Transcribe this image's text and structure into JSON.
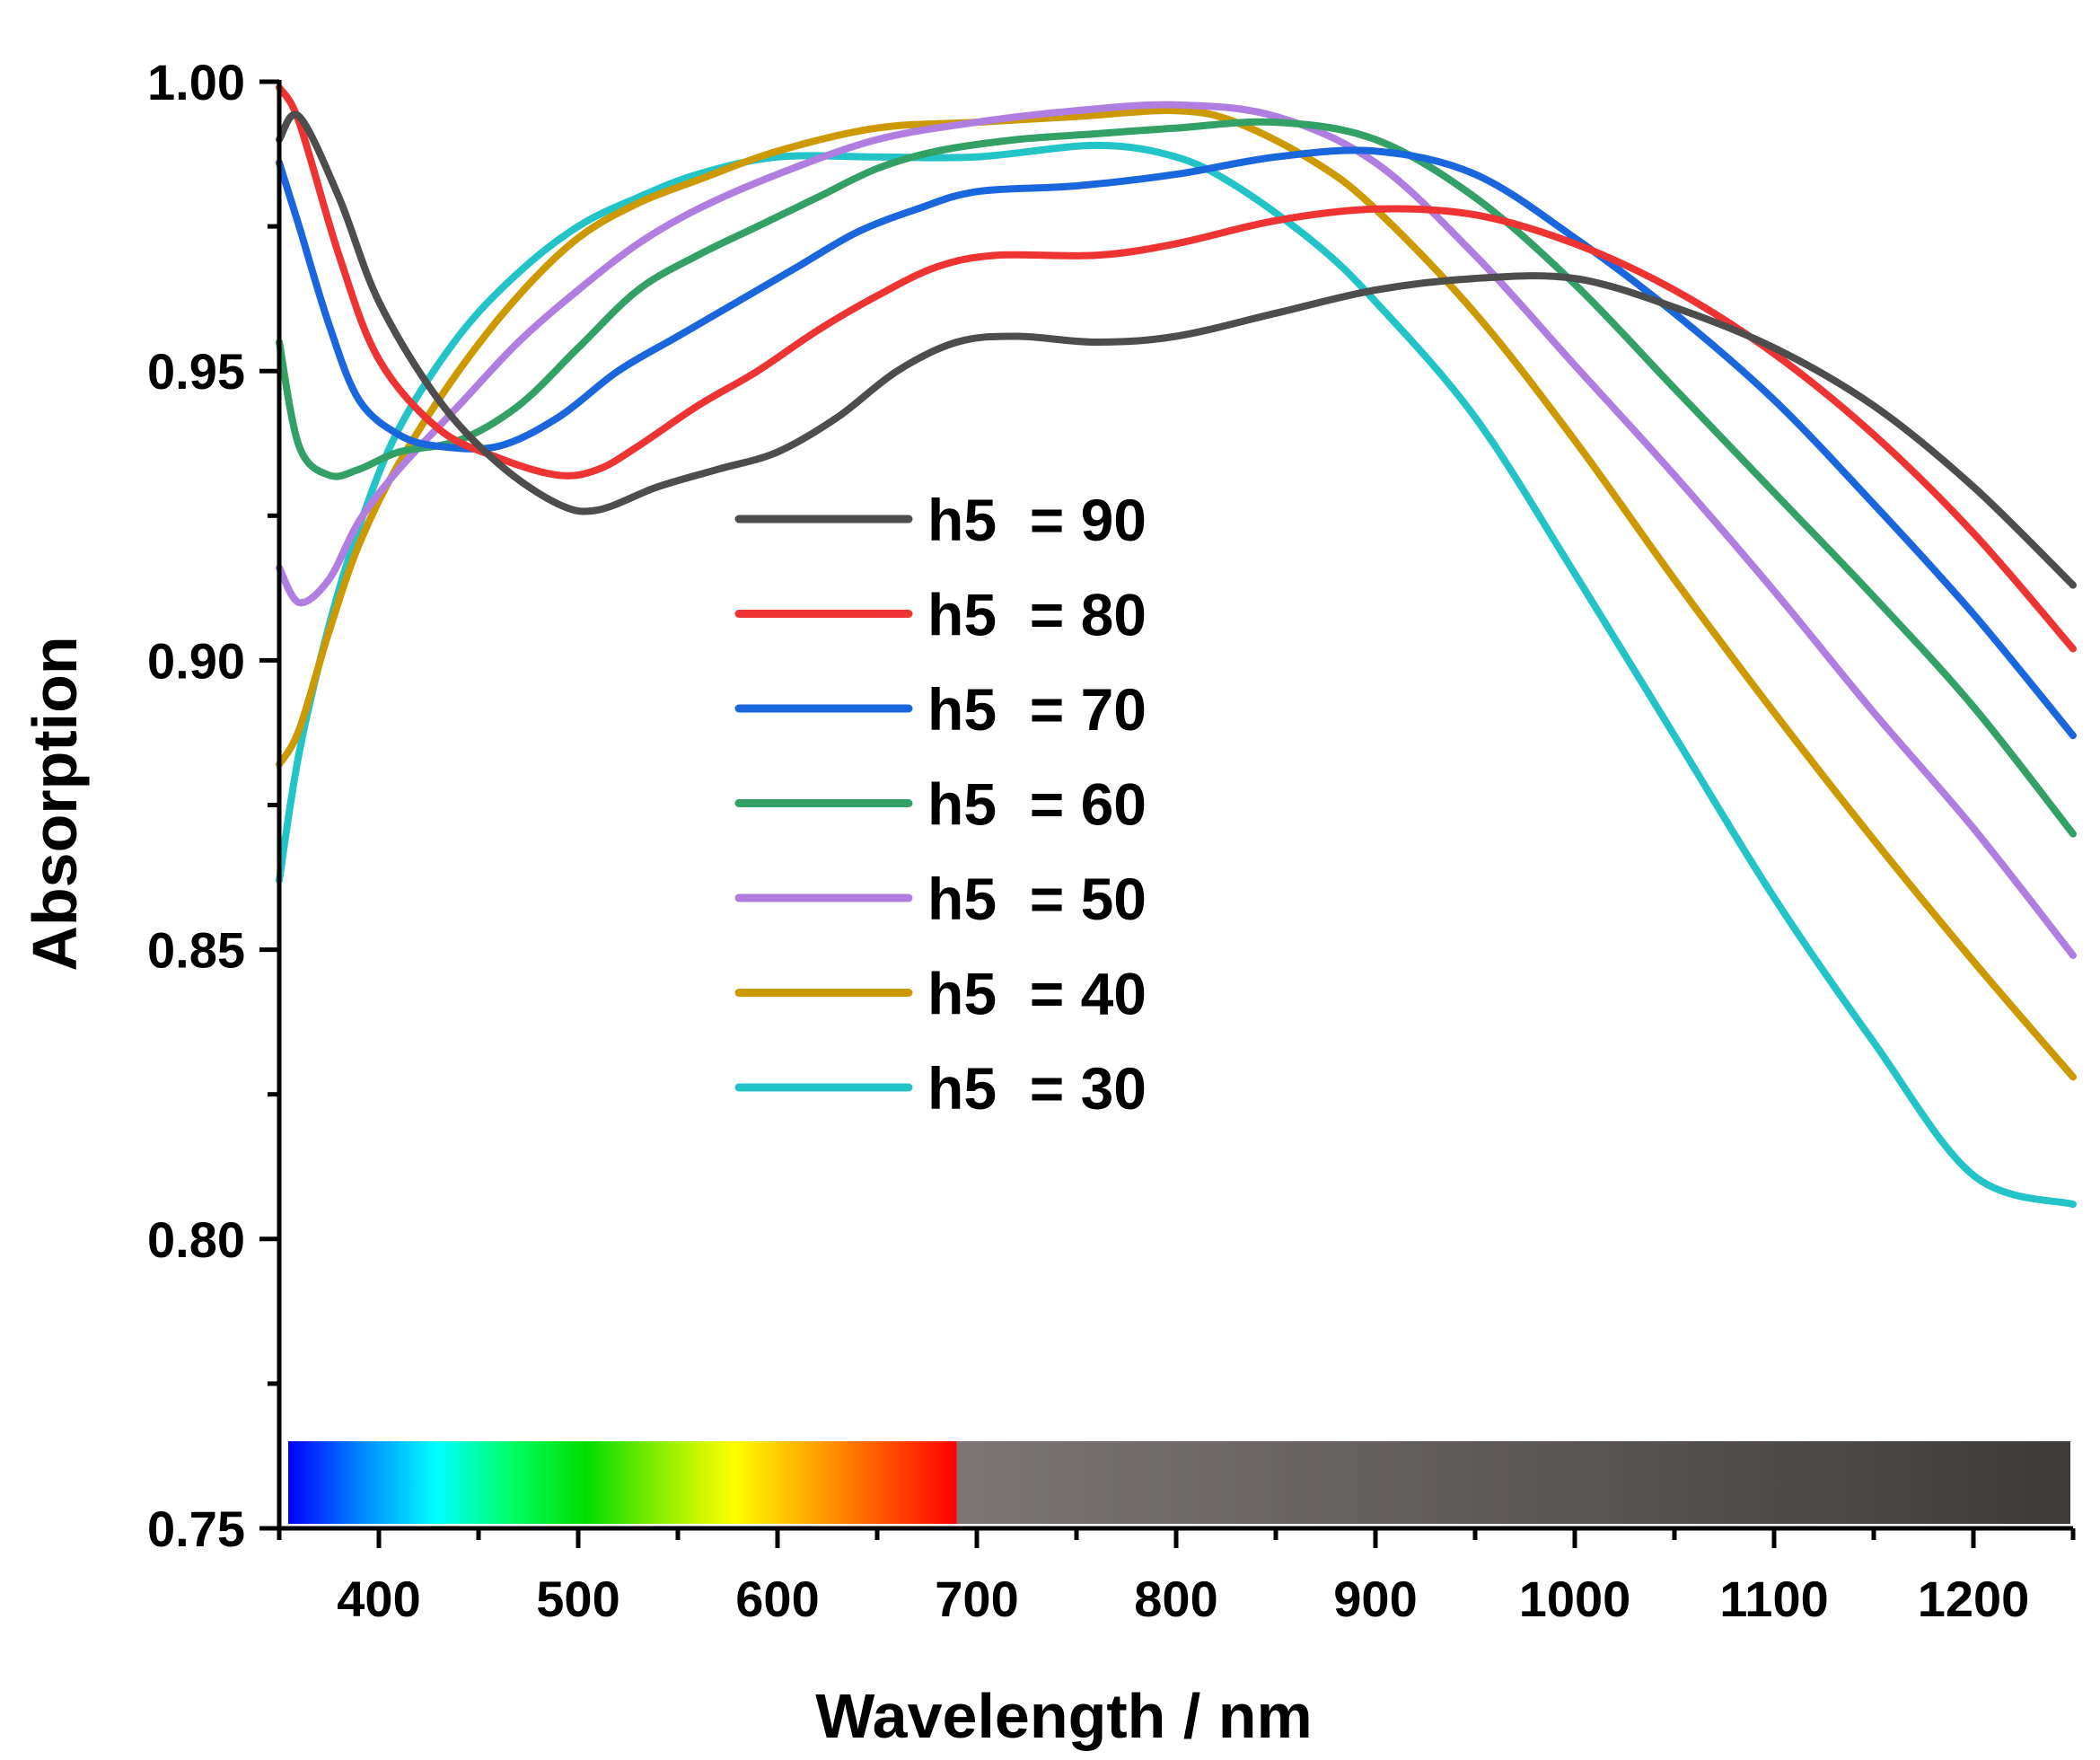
{
  "chart_data": {
    "type": "line",
    "xlabel": "Wavelength / nm",
    "ylabel": "Absorption",
    "xlim": [
      350,
      1250
    ],
    "ylim": [
      0.75,
      1.0
    ],
    "x_ticks": [
      400,
      500,
      600,
      700,
      800,
      900,
      1000,
      1100,
      1200
    ],
    "y_ticks": [
      0.75,
      0.8,
      0.85,
      0.9,
      0.95,
      1.0
    ],
    "y_tick_labels": [
      "0.75",
      "0.80",
      "0.85",
      "0.90",
      "0.95",
      "1.00"
    ],
    "grid": false,
    "legend_position": "center",
    "spectrum_bar": {
      "visible_range_nm": [
        350,
        690
      ],
      "infrared_range_nm": [
        690,
        1250
      ],
      "colors": [
        "#0000ff",
        "#0088ff",
        "#00ffff",
        "#00ff66",
        "#00dd00",
        "#88ee00",
        "#ffff00",
        "#ffaa00",
        "#ff5500",
        "#ff0000"
      ],
      "ir_colors": [
        "#7b7675",
        "#3f3b3a"
      ]
    },
    "series": [
      {
        "name": "h5  = 90",
        "color": "#4d4d4d",
        "x": [
          350,
          360,
          380,
          400,
          430,
          460,
          490,
          510,
          540,
          570,
          600,
          630,
          660,
          690,
          720,
          760,
          800,
          850,
          900,
          950,
          1000,
          1050,
          1100,
          1150,
          1200,
          1250
        ],
        "y": [
          0.99,
          0.994,
          0.98,
          0.962,
          0.945,
          0.934,
          0.927,
          0.926,
          0.93,
          0.933,
          0.936,
          0.942,
          0.95,
          0.955,
          0.956,
          0.955,
          0.956,
          0.96,
          0.964,
          0.966,
          0.966,
          0.961,
          0.954,
          0.944,
          0.93,
          0.913
        ]
      },
      {
        "name": "h5  = 80",
        "color": "#ee3333",
        "x": [
          350,
          360,
          380,
          400,
          430,
          460,
          490,
          510,
          530,
          560,
          590,
          620,
          650,
          680,
          710,
          760,
          800,
          850,
          900,
          950,
          1000,
          1050,
          1100,
          1150,
          1200,
          1250
        ],
        "y": [
          0.999,
          0.993,
          0.97,
          0.952,
          0.94,
          0.935,
          0.932,
          0.933,
          0.937,
          0.944,
          0.95,
          0.957,
          0.963,
          0.968,
          0.97,
          0.97,
          0.972,
          0.976,
          0.978,
          0.977,
          0.972,
          0.964,
          0.953,
          0.939,
          0.922,
          0.902
        ]
      },
      {
        "name": "h5  = 70",
        "color": "#1a66dd",
        "x": [
          350,
          360,
          375,
          390,
          410,
          430,
          460,
          490,
          520,
          550,
          580,
          610,
          640,
          670,
          700,
          750,
          800,
          850,
          900,
          950,
          1000,
          1050,
          1100,
          1150,
          1200,
          1250
        ],
        "y": [
          0.986,
          0.975,
          0.958,
          0.945,
          0.939,
          0.937,
          0.937,
          0.942,
          0.95,
          0.956,
          0.962,
          0.968,
          0.974,
          0.978,
          0.981,
          0.982,
          0.984,
          0.987,
          0.988,
          0.984,
          0.973,
          0.96,
          0.945,
          0.927,
          0.908,
          0.887
        ]
      },
      {
        "name": "h5  = 60",
        "color": "#33a066",
        "x": [
          350,
          360,
          375,
          390,
          410,
          440,
          470,
          500,
          530,
          560,
          590,
          620,
          650,
          680,
          720,
          760,
          800,
          850,
          900,
          950,
          1000,
          1050,
          1100,
          1150,
          1200,
          1250
        ],
        "y": [
          0.955,
          0.937,
          0.932,
          0.933,
          0.936,
          0.938,
          0.944,
          0.954,
          0.964,
          0.97,
          0.975,
          0.98,
          0.985,
          0.988,
          0.99,
          0.991,
          0.992,
          0.993,
          0.99,
          0.98,
          0.965,
          0.947,
          0.929,
          0.911,
          0.892,
          0.87
        ]
      },
      {
        "name": "h5  = 50",
        "color": "#b07ee0",
        "x": [
          350,
          360,
          375,
          390,
          410,
          440,
          470,
          500,
          530,
          560,
          600,
          650,
          700,
          750,
          800,
          850,
          900,
          950,
          1000,
          1050,
          1100,
          1150,
          1200,
          1250
        ],
        "y": [
          0.916,
          0.91,
          0.914,
          0.924,
          0.933,
          0.944,
          0.955,
          0.964,
          0.972,
          0.978,
          0.984,
          0.99,
          0.993,
          0.995,
          0.996,
          0.994,
          0.986,
          0.97,
          0.951,
          0.932,
          0.912,
          0.891,
          0.871,
          0.849
        ]
      },
      {
        "name": "h5  = 40",
        "color": "#cc9900",
        "x": [
          350,
          360,
          375,
          390,
          410,
          440,
          470,
          500,
          530,
          560,
          600,
          650,
          700,
          750,
          800,
          830,
          870,
          900,
          950,
          1000,
          1050,
          1100,
          1150,
          1200,
          1250
        ],
        "y": [
          0.882,
          0.888,
          0.905,
          0.92,
          0.934,
          0.95,
          0.963,
          0.973,
          0.979,
          0.983,
          0.988,
          0.992,
          0.993,
          0.994,
          0.995,
          0.993,
          0.986,
          0.978,
          0.96,
          0.938,
          0.914,
          0.891,
          0.869,
          0.848,
          0.828
        ]
      },
      {
        "name": "h5  = 30",
        "color": "#22c4c8",
        "x": [
          350,
          360,
          375,
          390,
          410,
          440,
          470,
          500,
          530,
          560,
          600,
          650,
          700,
          760,
          800,
          830,
          870,
          900,
          950,
          1000,
          1050,
          1100,
          1150,
          1200,
          1250
        ],
        "y": [
          0.862,
          0.884,
          0.906,
          0.923,
          0.94,
          0.956,
          0.967,
          0.975,
          0.98,
          0.984,
          0.987,
          0.987,
          0.987,
          0.989,
          0.987,
          0.982,
          0.972,
          0.962,
          0.942,
          0.915,
          0.887,
          0.859,
          0.834,
          0.811,
          0.806
        ]
      }
    ]
  }
}
